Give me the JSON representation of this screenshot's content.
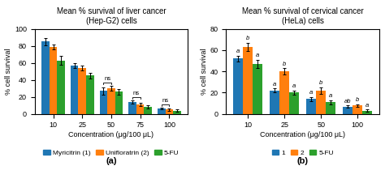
{
  "chart_data": [
    {
      "type": "bar",
      "title": "Mean % survival of liver cancer\n(Hep-G2) cells",
      "x_label": "Concentration (μg/100 μL)",
      "y_label": "% cell survival",
      "panel_label": "(a)",
      "categories": [
        "10",
        "25",
        "50",
        "75",
        "100"
      ],
      "series": [
        {
          "name": "Myricitrin (1)",
          "values": [
            85,
            57,
            27,
            14,
            6
          ],
          "errors": [
            4,
            3,
            4,
            2,
            1
          ]
        },
        {
          "name": "Unifloratrin (2)",
          "values": [
            79,
            54,
            30,
            11,
            5
          ],
          "errors": [
            3,
            3,
            3,
            2,
            1
          ]
        },
        {
          "name": "5-FU",
          "values": [
            63,
            45,
            26,
            8,
            4
          ],
          "errors": [
            5,
            3,
            3,
            2,
            1
          ]
        }
      ],
      "ylim": [
        0,
        100
      ],
      "yticks": [
        0,
        20,
        40,
        60,
        80,
        100
      ],
      "grid": false,
      "legend": "upper center",
      "annotations": [
        {
          "text": "ns",
          "category": "50",
          "series": [
            "Myricitrin (1)",
            "Unifloratrin (2)"
          ]
        },
        {
          "text": "ns",
          "category": "75",
          "series": [
            "Myricitrin (1)",
            "Unifloratrin (2)"
          ]
        },
        {
          "text": "ns",
          "category": "100",
          "series": [
            "Myricitrin (1)",
            "Unifloratrin (2)"
          ]
        }
      ]
    },
    {
      "type": "bar",
      "title": "Mean % survival of cervical cancer\n(HeLa) cells",
      "x_label": "Concentration (μg/100 μL)",
      "y_label": "% cell survival",
      "panel_label": "(b)",
      "categories": [
        "10",
        "25",
        "50",
        "100"
      ],
      "series": [
        {
          "name": "1",
          "values": [
            52,
            22,
            14,
            7
          ],
          "errors": [
            3,
            2,
            2,
            1
          ]
        },
        {
          "name": "2",
          "values": [
            63,
            40,
            22,
            8
          ],
          "errors": [
            4,
            3,
            3,
            1
          ]
        },
        {
          "name": "5-FU",
          "values": [
            47,
            20,
            11,
            3
          ],
          "errors": [
            4,
            2,
            2,
            1
          ]
        }
      ],
      "ylim": [
        0,
        80
      ],
      "yticks": [
        0,
        20,
        40,
        60,
        80
      ],
      "grid": false,
      "legend": "upper center",
      "annotations": [
        {
          "text": "a",
          "category": "10",
          "series": "1"
        },
        {
          "text": "b",
          "category": "10",
          "series": "2"
        },
        {
          "text": "a",
          "category": "10",
          "series": "5-FU"
        },
        {
          "text": "a",
          "category": "25",
          "series": "1"
        },
        {
          "text": "b",
          "category": "25",
          "series": "2"
        },
        {
          "text": "a",
          "category": "25",
          "series": "5-FU"
        },
        {
          "text": "a",
          "category": "50",
          "series": "1"
        },
        {
          "text": "b",
          "category": "50",
          "series": "2"
        },
        {
          "text": "a",
          "category": "50",
          "series": "5-FU"
        },
        {
          "text": "ab",
          "category": "100",
          "series": "1"
        },
        {
          "text": "b",
          "category": "100",
          "series": "2"
        },
        {
          "text": "a",
          "category": "100",
          "series": "5-FU"
        }
      ]
    }
  ]
}
